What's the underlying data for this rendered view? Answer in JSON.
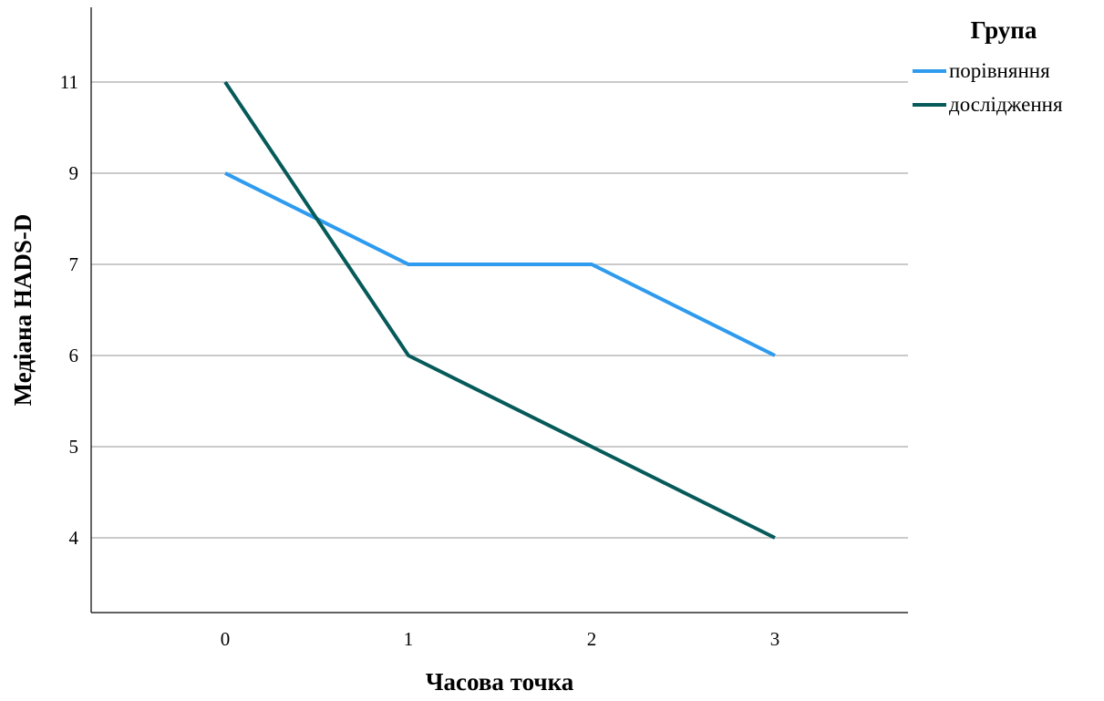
{
  "chart_data": {
    "type": "line",
    "title": "",
    "xlabel": "Часова точка",
    "ylabel": "Медіана HADS-D",
    "x": [
      0,
      1,
      2,
      3
    ],
    "x_tick_labels": [
      "0",
      "1",
      "2",
      "3"
    ],
    "y_tick_values": [
      4,
      5,
      6,
      7,
      9,
      11
    ],
    "y_tick_labels": [
      "4",
      "5",
      "6",
      "7",
      "9",
      "11"
    ],
    "y_axis_scale": "categorical (evenly spaced tick values)",
    "grid": "horizontal",
    "legend_title": "Група",
    "legend_position": "top-right, outside plot",
    "series": [
      {
        "name": "порівняння",
        "color": "#2e9bef",
        "values": [
          9,
          7,
          7,
          6
        ]
      },
      {
        "name": "дослідження",
        "color": "#065a5a",
        "values": [
          11,
          6,
          5,
          4
        ]
      }
    ]
  }
}
